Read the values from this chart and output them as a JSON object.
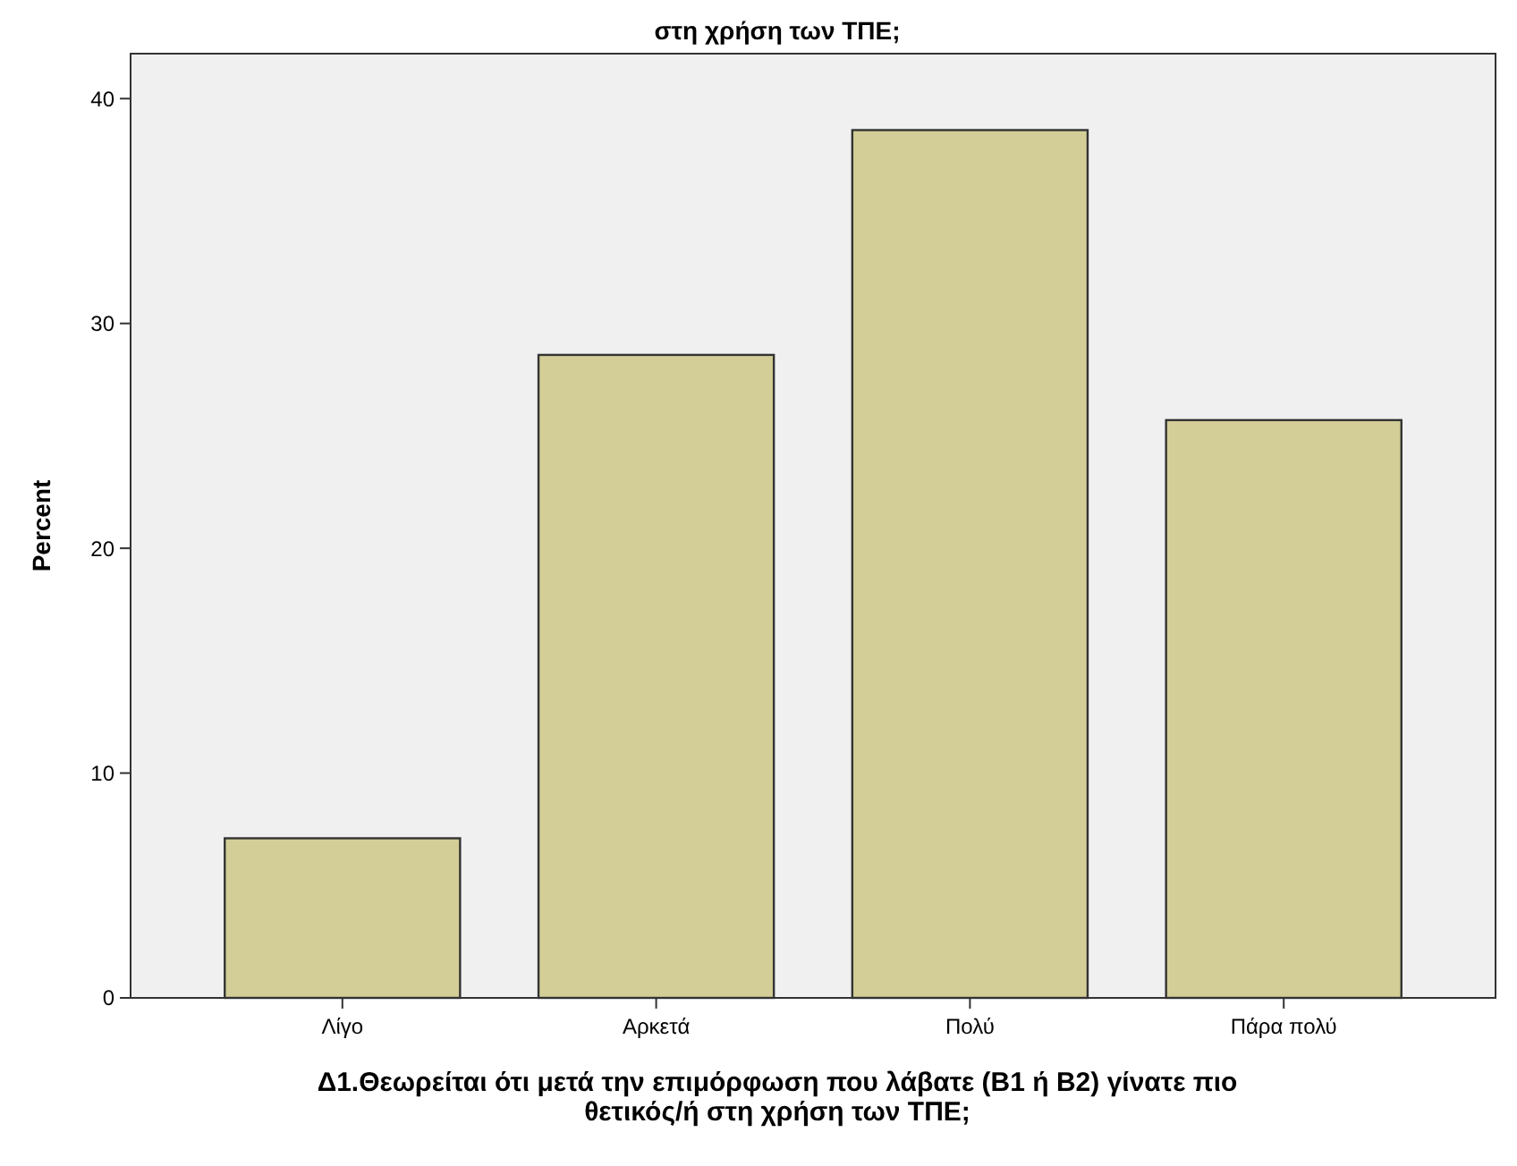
{
  "chart_data": {
    "type": "bar",
    "title": "στη χρήση των ΤΠΕ;",
    "xlabel": "Δ1.Θεωρείται ότι μετά την επιμόρφωση που λάβατε (Β1 ή Β2) γίνατε πιο θετικός/ή στη χρήση των ΤΠΕ;",
    "ylabel": "Percent",
    "categories": [
      "Λίγο",
      "Αρκετά",
      "Πολύ",
      "Πάρα πολύ"
    ],
    "values": [
      7.1,
      28.6,
      38.6,
      25.7
    ],
    "color": "#d3ce97",
    "ylim": [
      0,
      42
    ],
    "yticks": [
      0,
      10,
      20,
      30,
      40
    ],
    "grid": false
  }
}
